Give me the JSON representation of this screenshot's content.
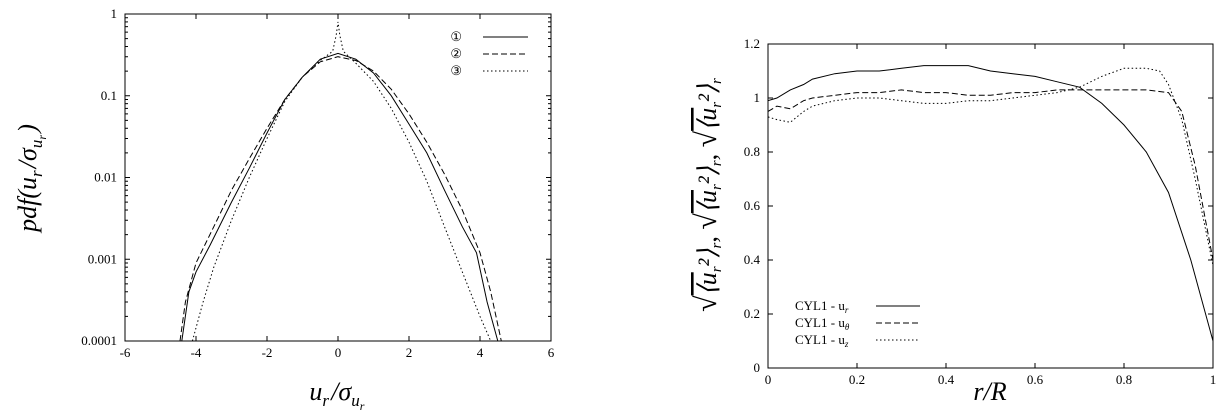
{
  "chart_data": [
    {
      "type": "line",
      "ylog": true,
      "xlim": [
        -6,
        6
      ],
      "ylim": [
        0.0001,
        1
      ],
      "xticks": [
        "-6",
        "-4",
        "-2",
        "0",
        "2",
        "4",
        "6"
      ],
      "xtick_values": [
        -6,
        -4,
        -2,
        0,
        2,
        4,
        6
      ],
      "yticks": [
        "0.0001",
        "0.001",
        "0.01",
        "0.1",
        "1"
      ],
      "ytick_values": [
        0.0001,
        0.001,
        0.01,
        0.1,
        1
      ],
      "xlabel": "u_r/σ_{u_r}",
      "ylabel": "pdf(u_r/σ_{u_r})",
      "legend_position": "top-right",
      "series": [
        {
          "name": "①",
          "style": "solid",
          "x": [
            -4.4,
            -4.2,
            -4.0,
            -3.6,
            -3.0,
            -2.5,
            -2.0,
            -1.5,
            -1.0,
            -0.5,
            0.0,
            0.5,
            1.0,
            1.5,
            2.0,
            2.5,
            3.0,
            3.5,
            3.9,
            4.2,
            4.5
          ],
          "y": [
            0.0001,
            0.0004,
            0.0007,
            0.0015,
            0.005,
            0.013,
            0.035,
            0.09,
            0.17,
            0.28,
            0.33,
            0.28,
            0.19,
            0.1,
            0.045,
            0.02,
            0.007,
            0.0025,
            0.0012,
            0.0003,
            0.0001
          ]
        },
        {
          "name": "②",
          "style": "dashed",
          "x": [
            -4.45,
            -4.3,
            -4.0,
            -3.5,
            -3.0,
            -2.5,
            -2.0,
            -1.5,
            -1.0,
            -0.5,
            0.0,
            0.5,
            1.0,
            1.5,
            2.0,
            2.5,
            3.0,
            3.5,
            4.0,
            4.3,
            4.6
          ],
          "y": [
            0.0001,
            0.0003,
            0.0009,
            0.0025,
            0.007,
            0.017,
            0.04,
            0.09,
            0.17,
            0.26,
            0.3,
            0.27,
            0.2,
            0.12,
            0.06,
            0.027,
            0.011,
            0.004,
            0.0012,
            0.0004,
            0.0001
          ]
        },
        {
          "name": "③",
          "style": "dotted",
          "x": [
            -4.1,
            -3.8,
            -3.5,
            -3.0,
            -2.5,
            -2.0,
            -1.5,
            -1.0,
            -0.5,
            -0.15,
            -0.05,
            0.0,
            0.05,
            0.15,
            0.5,
            1.0,
            1.5,
            2.0,
            2.5,
            3.0,
            3.5,
            4.0,
            4.3
          ],
          "y": [
            0.0001,
            0.0003,
            0.0008,
            0.003,
            0.01,
            0.03,
            0.085,
            0.17,
            0.27,
            0.35,
            0.55,
            0.8,
            0.55,
            0.35,
            0.25,
            0.15,
            0.07,
            0.027,
            0.009,
            0.0025,
            0.0007,
            0.0002,
            0.0001
          ]
        }
      ]
    },
    {
      "type": "line",
      "xlim": [
        0,
        1
      ],
      "ylim": [
        0,
        1.2
      ],
      "xticks": [
        "0",
        "0.2",
        "0.4",
        "0.6",
        "0.8",
        "1"
      ],
      "xtick_values": [
        0,
        0.2,
        0.4,
        0.6,
        0.8,
        1
      ],
      "yticks": [
        "0",
        "0.2",
        "0.4",
        "0.6",
        "0.8",
        "1",
        "1.2"
      ],
      "ytick_values": [
        0,
        0.2,
        0.4,
        0.6,
        0.8,
        1,
        1.2
      ],
      "xlabel": "r/R",
      "ylabel": "√⟨u_r²⟩_r, √⟨u_r²⟩_r, √⟨u_r²⟩_r",
      "legend_position": "bottom-left",
      "series": [
        {
          "name": "CYL1 - u_r",
          "style": "solid",
          "x": [
            0,
            0.02,
            0.05,
            0.08,
            0.1,
            0.15,
            0.2,
            0.25,
            0.3,
            0.35,
            0.4,
            0.45,
            0.5,
            0.55,
            0.6,
            0.65,
            0.7,
            0.75,
            0.8,
            0.85,
            0.9,
            0.95,
            1.0
          ],
          "y": [
            0.99,
            1.0,
            1.03,
            1.05,
            1.07,
            1.09,
            1.1,
            1.1,
            1.11,
            1.12,
            1.12,
            1.12,
            1.1,
            1.09,
            1.08,
            1.06,
            1.04,
            0.98,
            0.9,
            0.8,
            0.65,
            0.4,
            0.1
          ]
        },
        {
          "name": "CYL1 - u_θ",
          "style": "dashed",
          "x": [
            0,
            0.02,
            0.05,
            0.08,
            0.1,
            0.15,
            0.2,
            0.25,
            0.3,
            0.35,
            0.4,
            0.45,
            0.5,
            0.55,
            0.6,
            0.65,
            0.7,
            0.75,
            0.8,
            0.85,
            0.9,
            0.93,
            0.96,
            1.0
          ],
          "y": [
            0.95,
            0.97,
            0.96,
            0.99,
            1.0,
            1.01,
            1.02,
            1.02,
            1.03,
            1.02,
            1.02,
            1.01,
            1.01,
            1.02,
            1.02,
            1.03,
            1.03,
            1.03,
            1.03,
            1.03,
            1.02,
            0.95,
            0.75,
            0.4
          ]
        },
        {
          "name": "CYL1 - u_z",
          "style": "dotted",
          "x": [
            0,
            0.02,
            0.05,
            0.08,
            0.1,
            0.15,
            0.2,
            0.25,
            0.3,
            0.35,
            0.4,
            0.45,
            0.5,
            0.55,
            0.6,
            0.65,
            0.7,
            0.75,
            0.8,
            0.85,
            0.88,
            0.9,
            0.93,
            0.96,
            1.0
          ],
          "y": [
            0.93,
            0.92,
            0.91,
            0.95,
            0.97,
            0.99,
            1.0,
            1.0,
            0.99,
            0.98,
            0.98,
            0.99,
            0.99,
            1.0,
            1.01,
            1.02,
            1.04,
            1.08,
            1.11,
            1.11,
            1.1,
            1.05,
            0.92,
            0.7,
            0.38
          ]
        }
      ]
    }
  ]
}
